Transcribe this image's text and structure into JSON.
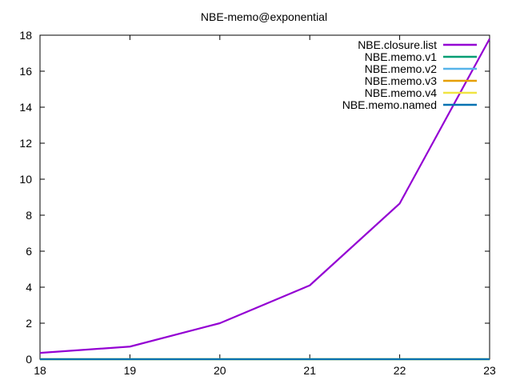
{
  "chart_data": {
    "type": "line",
    "title": "NBE-memo@exponential",
    "xlabel": "",
    "ylabel": "",
    "x": [
      18,
      19,
      20,
      21,
      22,
      23
    ],
    "xlim": [
      18,
      23
    ],
    "ylim": [
      0,
      18
    ],
    "xticks": [
      "18",
      "19",
      "20",
      "21",
      "22",
      "23"
    ],
    "yticks": [
      "0",
      "2",
      "4",
      "6",
      "8",
      "10",
      "12",
      "14",
      "16",
      "18"
    ],
    "grid": false,
    "legend_position": "top-right",
    "series": [
      {
        "name": "NBE.closure.list",
        "color": "#9400d3",
        "values": [
          0.35,
          0.7,
          2.0,
          4.1,
          8.65,
          17.8
        ]
      },
      {
        "name": "NBE.memo.v1",
        "color": "#009e73",
        "values": [
          0,
          0,
          0,
          0,
          0,
          0
        ]
      },
      {
        "name": "NBE.memo.v2",
        "color": "#56b4e9",
        "values": [
          0,
          0,
          0,
          0,
          0,
          0
        ]
      },
      {
        "name": "NBE.memo.v3",
        "color": "#e69f00",
        "values": [
          0,
          0,
          0,
          0,
          0,
          0
        ]
      },
      {
        "name": "NBE.memo.v4",
        "color": "#f0e442",
        "values": [
          0,
          0,
          0,
          0,
          0,
          0
        ]
      },
      {
        "name": "NBE.memo.named",
        "color": "#0072b2",
        "values": [
          0,
          0,
          0,
          0,
          0,
          0
        ]
      }
    ]
  }
}
